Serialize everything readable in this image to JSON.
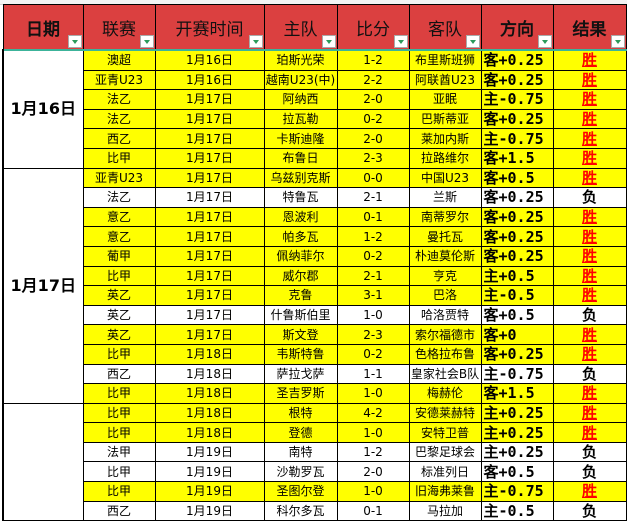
{
  "headers": [
    "日期",
    "联赛",
    "开赛时间",
    "主队",
    "比分",
    "客队",
    "方向",
    "结果"
  ],
  "colors": {
    "header": "#db4040",
    "highlight": "#ffff00",
    "win": "#ff0000",
    "loss": "#000000"
  },
  "groups": [
    {
      "date": "1月16日",
      "rows": 6
    },
    {
      "date": "1月17日",
      "rows": 12
    },
    {
      "date": "",
      "rows": 6
    }
  ],
  "rows": [
    {
      "league": "澳超",
      "time": "1月16日",
      "home": "珀斯光荣",
      "score": "1-2",
      "away": "布里斯班狮",
      "dir": "客+0.25",
      "result": "胜",
      "hl": true
    },
    {
      "league": "亚青U23",
      "time": "1月16日",
      "home": "越南U23(中)",
      "score": "2-2",
      "away": "阿联酋U23",
      "dir": "客+0.25",
      "result": "胜",
      "hl": true
    },
    {
      "league": "法乙",
      "time": "1月17日",
      "home": "阿纳西",
      "score": "2-0",
      "away": "亚眠",
      "dir": "主-0.75",
      "result": "胜",
      "hl": true
    },
    {
      "league": "法乙",
      "time": "1月17日",
      "home": "拉瓦勒",
      "score": "0-2",
      "away": "巴斯蒂亚",
      "dir": "客+0.25",
      "result": "胜",
      "hl": true
    },
    {
      "league": "西乙",
      "time": "1月17日",
      "home": "卡斯迪隆",
      "score": "2-0",
      "away": "莱加内斯",
      "dir": "主-0.75",
      "result": "胜",
      "hl": true
    },
    {
      "league": "比甲",
      "time": "1月17日",
      "home": "布鲁日",
      "score": "2-3",
      "away": "拉路维尔",
      "dir": "客+1.5",
      "result": "胜",
      "hl": true
    },
    {
      "league": "亚青U23",
      "time": "1月17日",
      "home": "乌兹别克斯",
      "score": "0-0",
      "away": "中国U23",
      "dir": "客+0.5",
      "result": "胜",
      "hl": true
    },
    {
      "league": "法乙",
      "time": "1月17日",
      "home": "特鲁瓦",
      "score": "2-1",
      "away": "兰斯",
      "dir": "客+0.25",
      "result": "负",
      "hl": false
    },
    {
      "league": "意乙",
      "time": "1月17日",
      "home": "恩波利",
      "score": "0-1",
      "away": "南蒂罗尔",
      "dir": "客+0.25",
      "result": "胜",
      "hl": true
    },
    {
      "league": "意乙",
      "time": "1月17日",
      "home": "帕多瓦",
      "score": "1-2",
      "away": "曼托瓦",
      "dir": "客+0.25",
      "result": "胜",
      "hl": true
    },
    {
      "league": "葡甲",
      "time": "1月17日",
      "home": "佩纳菲尔",
      "score": "0-2",
      "away": "朴迪莫伦斯",
      "dir": "客+0.25",
      "result": "胜",
      "hl": true
    },
    {
      "league": "比甲",
      "time": "1月17日",
      "home": "威尔郡",
      "score": "2-1",
      "away": "亨克",
      "dir": "主+0.5",
      "result": "胜",
      "hl": true
    },
    {
      "league": "英乙",
      "time": "1月17日",
      "home": "克鲁",
      "score": "3-1",
      "away": "巴洛",
      "dir": "主-0.5",
      "result": "胜",
      "hl": true
    },
    {
      "league": "英乙",
      "time": "1月17日",
      "home": "什鲁斯伯里",
      "score": "1-0",
      "away": "哈洛贾特",
      "dir": "客+0.5",
      "result": "负",
      "hl": false
    },
    {
      "league": "英乙",
      "time": "1月17日",
      "home": "斯文登",
      "score": "2-3",
      "away": "索尔福德市",
      "dir": "客+0",
      "result": "胜",
      "hl": true
    },
    {
      "league": "比甲",
      "time": "1月18日",
      "home": "韦斯特鲁",
      "score": "0-2",
      "away": "色格拉布鲁",
      "dir": "客+0.25",
      "result": "胜",
      "hl": true
    },
    {
      "league": "西乙",
      "time": "1月18日",
      "home": "萨拉戈萨",
      "score": "1-1",
      "away": "皇家社会B队",
      "dir": "主-0.75",
      "result": "负",
      "hl": false
    },
    {
      "league": "比甲",
      "time": "1月18日",
      "home": "圣吉罗斯",
      "score": "1-0",
      "away": "梅赫伦",
      "dir": "客+1.5",
      "result": "胜",
      "hl": true
    },
    {
      "league": "比甲",
      "time": "1月18日",
      "home": "根特",
      "score": "4-2",
      "away": "安德莱赫特",
      "dir": "主+0.25",
      "result": "胜",
      "hl": true
    },
    {
      "league": "比甲",
      "time": "1月18日",
      "home": "登德",
      "score": "1-0",
      "away": "安特卫普",
      "dir": "主+0.25",
      "result": "胜",
      "hl": true
    },
    {
      "league": "法甲",
      "time": "1月19日",
      "home": "南特",
      "score": "1-2",
      "away": "巴黎足球会",
      "dir": "主+0.25",
      "result": "负",
      "hl": false
    },
    {
      "league": "比甲",
      "time": "1月19日",
      "home": "沙勒罗瓦",
      "score": "2-0",
      "away": "标准列日",
      "dir": "客+0.5",
      "result": "负",
      "hl": false
    },
    {
      "league": "比甲",
      "time": "1月19日",
      "home": "圣图尔登",
      "score": "1-0",
      "away": "旧海弗莱鲁",
      "dir": "主-0.75",
      "result": "胜",
      "hl": true
    },
    {
      "league": "西乙",
      "time": "1月19日",
      "home": "科尔多瓦",
      "score": "0-1",
      "away": "马拉加",
      "dir": "主-0.5",
      "result": "负",
      "hl": false
    }
  ]
}
